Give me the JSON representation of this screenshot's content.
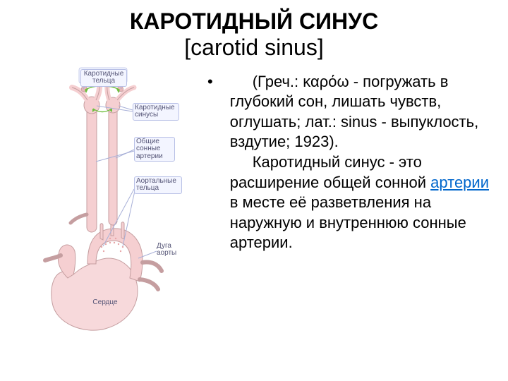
{
  "title": {
    "main": "КАРОТИДНЫЙ СИНУС",
    "sub": "[carotid sinus]"
  },
  "body": {
    "bullet": "•",
    "para1_a": "(Греч.: καρόω - погружать в глубокий сон, лишать чувств, оглушать; лат.: sinus - выпуклость, вздутие; 1923).",
    "para2_a": "Каротидный синус - это расширение общей сонной ",
    "para2_link": "артерии",
    "para2_b": " в месте её разветвления на наружную и внутреннюю сонные артерии."
  },
  "diagram": {
    "labels": {
      "carotid_bodies": "Каротидные\nтельца",
      "carotid_sinuses": "Каротидные\nсинусы",
      "common_carotid": "Общие\nсонные\nартерии",
      "aortic_bodies": "Аортальные\nтельца",
      "aortic_arch": "Дуга\nаорты",
      "heart": "Сердце"
    },
    "colors": {
      "vessel_fill": "#f5cfd1",
      "vessel_stroke": "#c59ea0",
      "heart_fill": "#f7d9db",
      "heart_stroke": "#c59ea0",
      "body_dot": "#e7a6a8",
      "label_box_fill": "#f3f5ff",
      "label_box_stroke": "#b8c0e6",
      "label_text": "#555577",
      "arrow_green": "#6fbf3f",
      "arrow_red": "#d66"
    }
  },
  "typography": {
    "title_fontsize": 32,
    "body_fontsize": 22,
    "label_fontsize": 10
  }
}
